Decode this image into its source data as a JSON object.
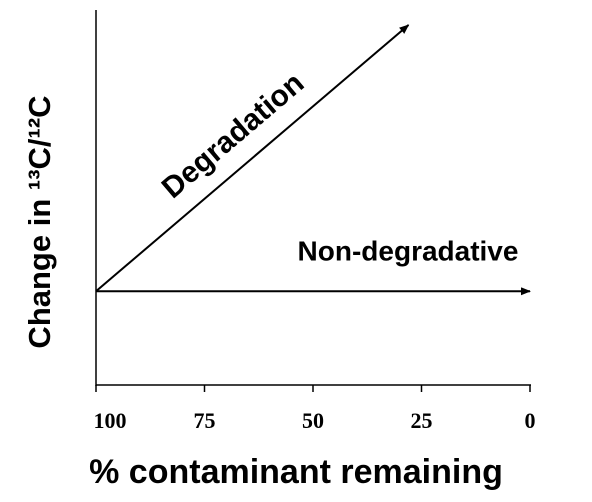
{
  "chart_data": {
    "type": "line",
    "x_label": "% contaminant remaining",
    "y_label": "Change in ¹³C/¹²C",
    "xlim": [
      100,
      0
    ],
    "xticks": [
      100,
      75,
      50,
      25,
      0
    ],
    "ylim": [
      0,
      100
    ],
    "series": [
      {
        "name": "Degradation",
        "color": "#000000",
        "x": [
          100,
          28
        ],
        "values": [
          25,
          96
        ]
      },
      {
        "name": "Non-degradative",
        "color": "#000000",
        "x": [
          100,
          0
        ],
        "values": [
          25,
          25
        ]
      }
    ]
  }
}
